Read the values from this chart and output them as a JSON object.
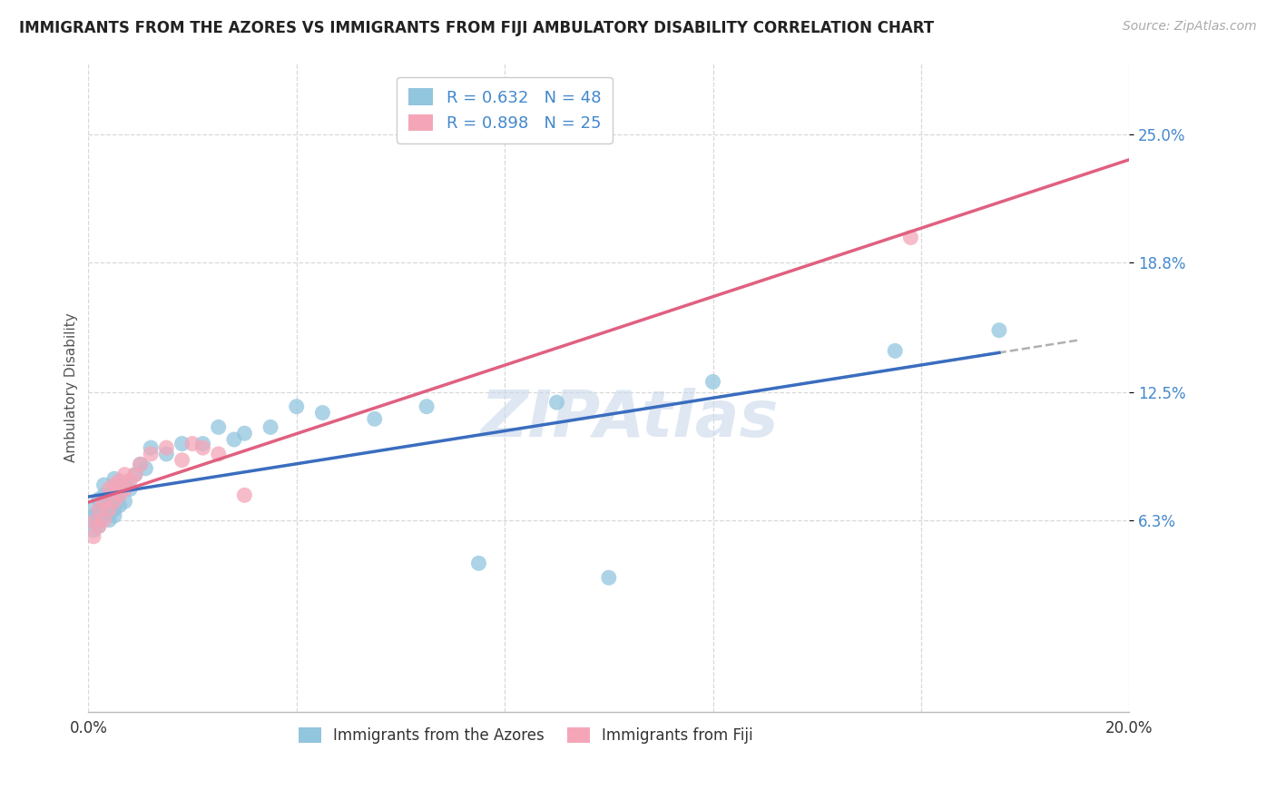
{
  "title": "IMMIGRANTS FROM THE AZORES VS IMMIGRANTS FROM FIJI AMBULATORY DISABILITY CORRELATION CHART",
  "source": "Source: ZipAtlas.com",
  "ylabel": "Ambulatory Disability",
  "xlim": [
    0.0,
    0.2
  ],
  "ylim": [
    -0.03,
    0.285
  ],
  "ytick_values": [
    0.063,
    0.125,
    0.188,
    0.25
  ],
  "xtick_values": [
    0.0,
    0.04,
    0.08,
    0.12,
    0.16,
    0.2
  ],
  "azores_R": 0.632,
  "azores_N": 48,
  "fiji_R": 0.898,
  "fiji_N": 25,
  "azores_color": "#92c5de",
  "fiji_color": "#f4a6b8",
  "azores_line_color": "#3a6dbf",
  "fiji_line_color": "#e06080",
  "ext_line_color": "#b0b0b0",
  "background_color": "#ffffff",
  "grid_color": "#d8d8d8",
  "watermark": "ZIPAtlas",
  "watermark_color": "#c8d8ea",
  "azores_x": [
    0.001,
    0.001,
    0.001,
    0.001,
    0.002,
    0.002,
    0.002,
    0.002,
    0.003,
    0.003,
    0.003,
    0.003,
    0.003,
    0.004,
    0.004,
    0.004,
    0.004,
    0.005,
    0.005,
    0.005,
    0.005,
    0.005,
    0.006,
    0.006,
    0.007,
    0.007,
    0.008,
    0.009,
    0.01,
    0.011,
    0.012,
    0.015,
    0.018,
    0.022,
    0.025,
    0.028,
    0.03,
    0.035,
    0.04,
    0.045,
    0.055,
    0.065,
    0.075,
    0.09,
    0.1,
    0.12,
    0.155,
    0.175
  ],
  "azores_y": [
    0.058,
    0.062,
    0.065,
    0.068,
    0.06,
    0.063,
    0.067,
    0.073,
    0.065,
    0.068,
    0.071,
    0.075,
    0.08,
    0.063,
    0.066,
    0.069,
    0.074,
    0.065,
    0.068,
    0.072,
    0.078,
    0.083,
    0.07,
    0.076,
    0.072,
    0.08,
    0.078,
    0.085,
    0.09,
    0.088,
    0.098,
    0.095,
    0.1,
    0.1,
    0.108,
    0.102,
    0.105,
    0.108,
    0.118,
    0.115,
    0.112,
    0.118,
    0.042,
    0.12,
    0.035,
    0.13,
    0.145,
    0.155
  ],
  "fiji_x": [
    0.001,
    0.001,
    0.002,
    0.002,
    0.003,
    0.003,
    0.004,
    0.004,
    0.005,
    0.005,
    0.006,
    0.006,
    0.007,
    0.007,
    0.008,
    0.009,
    0.01,
    0.012,
    0.015,
    0.018,
    0.02,
    0.022,
    0.025,
    0.03,
    0.158
  ],
  "fiji_y": [
    0.055,
    0.062,
    0.06,
    0.068,
    0.063,
    0.072,
    0.068,
    0.078,
    0.072,
    0.08,
    0.075,
    0.082,
    0.078,
    0.085,
    0.082,
    0.085,
    0.09,
    0.095,
    0.098,
    0.092,
    0.1,
    0.098,
    0.095,
    0.075,
    0.2
  ],
  "azores_trendline_x": [
    0.0,
    0.2
  ],
  "fiji_trendline_x": [
    0.0,
    0.2
  ],
  "ext_line_x": [
    0.12,
    0.19
  ],
  "title_fontsize": 12,
  "source_fontsize": 10,
  "legend_fontsize": 13,
  "ylabel_fontsize": 11,
  "ytick_fontsize": 12,
  "xtick_fontsize": 12
}
